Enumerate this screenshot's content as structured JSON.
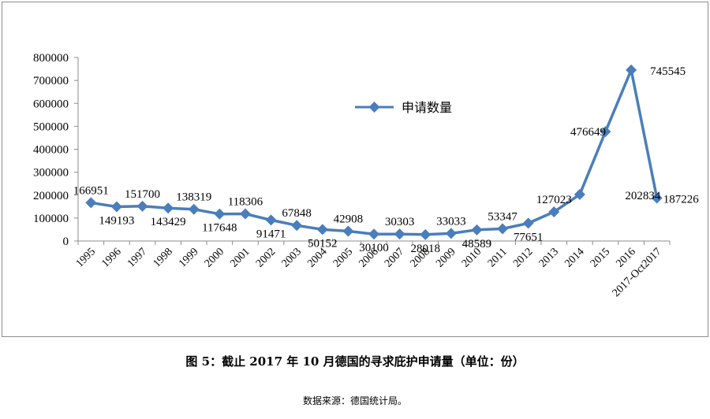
{
  "caption": "图 5：截止 2017 年 10 月德国的寻求庇护申请量（单位：份）",
  "source": "数据来源：德国统计局。",
  "chart_data": {
    "type": "line",
    "title": "",
    "xlabel": "",
    "ylabel": "",
    "ylim": [
      0,
      800000
    ],
    "yticks": [
      "0",
      "100000",
      "200000",
      "300000",
      "400000",
      "500000",
      "600000",
      "700000",
      "800000"
    ],
    "categories": [
      "1995",
      "1996",
      "1997",
      "1998",
      "1999",
      "2000",
      "2001",
      "2002",
      "2003",
      "2004",
      "2005",
      "2006",
      "2007",
      "2008",
      "2009",
      "2010",
      "2011",
      "2012",
      "2013",
      "2014",
      "2015",
      "2016",
      "2017-Oct2017"
    ],
    "series": [
      {
        "name": "申请数量",
        "color": "#4a7ebb",
        "values": [
          166951,
          149193,
          151700,
          143429,
          138319,
          117648,
          118306,
          91471,
          67848,
          50152,
          42908,
          30100,
          30303,
          28018,
          33033,
          48589,
          53347,
          77651,
          127023,
          202834,
          476649,
          745545,
          187226
        ],
        "labels": [
          "166951",
          "149193",
          "151700",
          "143429",
          "138319",
          "117648",
          "118306",
          "91471",
          "67848",
          "50152",
          "42908",
          "30100",
          "30303",
          "28018",
          "33033",
          "48589",
          "53347",
          "77651",
          "127023",
          "202834",
          "476649",
          "745545",
          "187226"
        ]
      }
    ],
    "grid": false,
    "legend": "top-center",
    "marker": "diamond-icon"
  }
}
